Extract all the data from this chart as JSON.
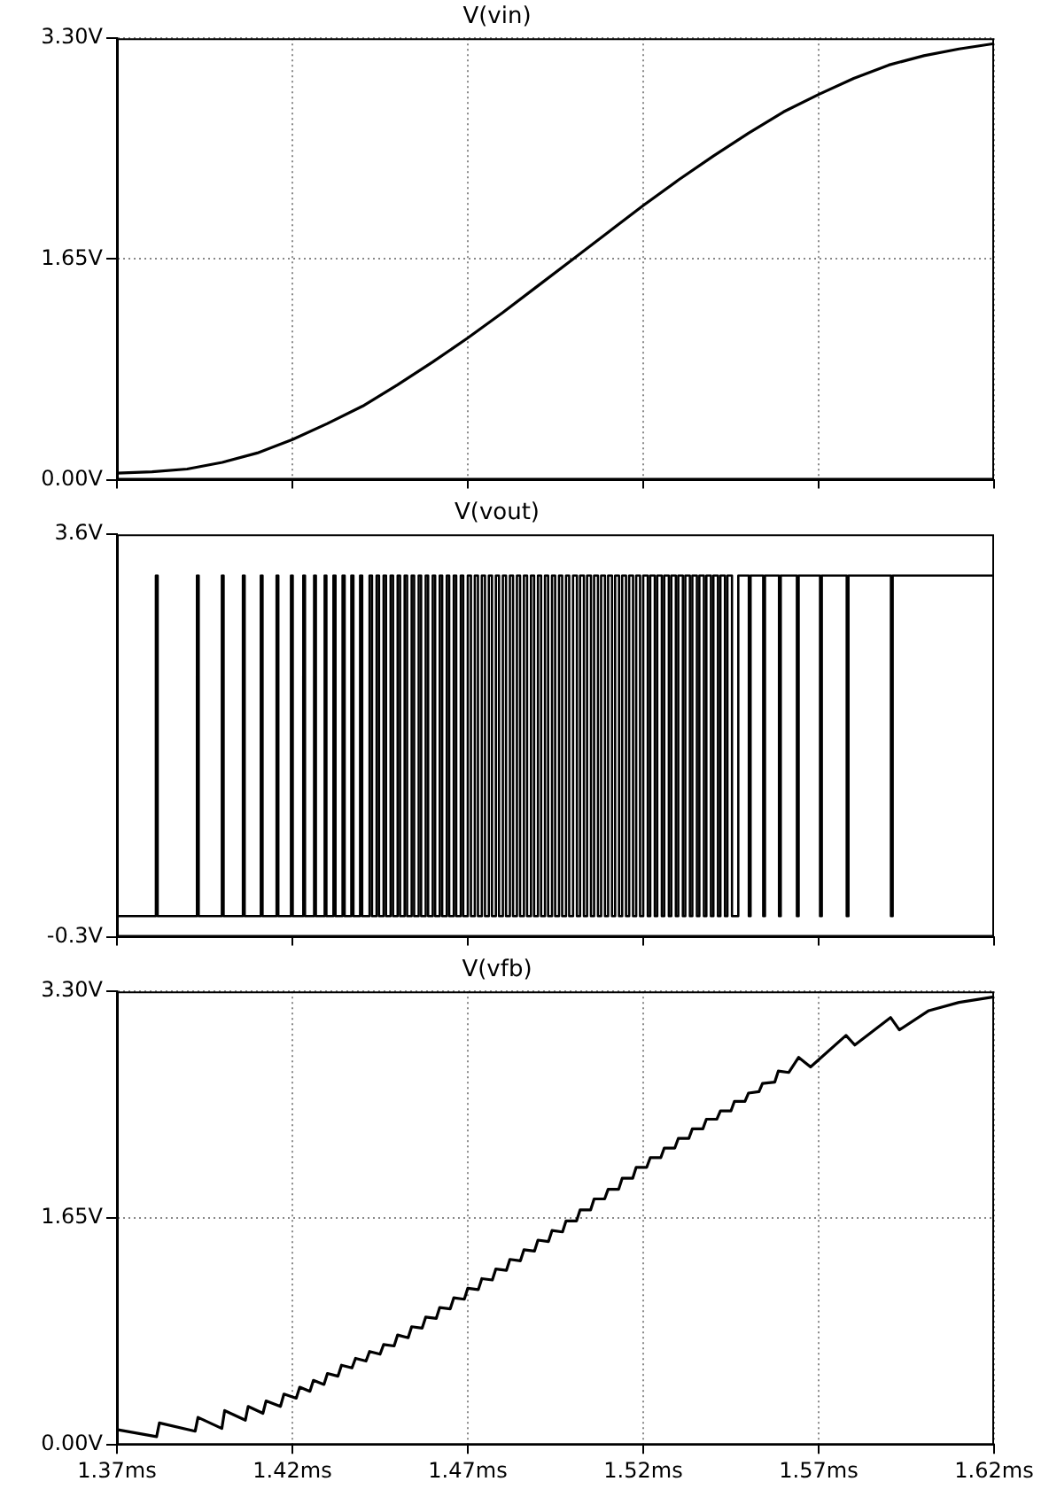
{
  "chart_data": [
    {
      "type": "line",
      "title": "V(vin)",
      "xlim": [
        1.37,
        1.62
      ],
      "ylim": [
        0,
        3.3
      ],
      "tick_labels": "y",
      "grid": true,
      "xticks": [
        {
          "value": 1.37,
          "label": null
        },
        {
          "value": 1.42,
          "label": null
        },
        {
          "value": 1.47,
          "label": null
        },
        {
          "value": 1.52,
          "label": null
        },
        {
          "value": 1.57,
          "label": null
        },
        {
          "value": 1.62,
          "label": null
        }
      ],
      "yticks": [
        {
          "value": 0,
          "label": "0.00V"
        },
        {
          "value": 1.65,
          "label": "1.65V"
        },
        {
          "value": 3.3,
          "label": "3.30V"
        }
      ],
      "series": [
        {
          "color": "#000000",
          "x": [
            1.37,
            1.38,
            1.39,
            1.4,
            1.41,
            1.42,
            1.43,
            1.44,
            1.45,
            1.46,
            1.47,
            1.48,
            1.49,
            1.5,
            1.51,
            1.52,
            1.53,
            1.54,
            1.55,
            1.56,
            1.57,
            1.58,
            1.59,
            1.6,
            1.61,
            1.62
          ],
          "values": [
            0.05,
            0.06,
            0.08,
            0.13,
            0.2,
            0.3,
            0.42,
            0.55,
            0.71,
            0.88,
            1.06,
            1.25,
            1.45,
            1.65,
            1.85,
            2.05,
            2.24,
            2.42,
            2.59,
            2.75,
            2.88,
            3.0,
            3.1,
            3.17,
            3.22,
            3.26
          ]
        }
      ]
    },
    {
      "type": "step",
      "title": "V(vout)",
      "xlim": [
        1.37,
        1.62
      ],
      "ylim": [
        -0.3,
        3.6
      ],
      "tick_labels": "y",
      "grid": false,
      "xticks": [
        {
          "value": 1.37,
          "label": null
        },
        {
          "value": 1.42,
          "label": null
        },
        {
          "value": 1.47,
          "label": null
        },
        {
          "value": 1.52,
          "label": null
        },
        {
          "value": 1.57,
          "label": null
        },
        {
          "value": 1.62,
          "label": null
        }
      ],
      "yticks": [
        {
          "value": -0.3,
          "label": "-0.3V"
        },
        {
          "value": 3.6,
          "label": "3.6V"
        }
      ],
      "series": [
        {
          "color": "#000000",
          "x": [
            1.37,
            1.3811,
            1.3816,
            1.3928,
            1.3933,
            1.3999,
            1.4004,
            1.4059,
            1.4064,
            1.411,
            1.4115,
            1.4155,
            1.416,
            1.4196,
            1.4201,
            1.4231,
            1.4236,
            1.4262,
            1.4267,
            1.4292,
            1.4297,
            1.4317,
            1.4323,
            1.4343,
            1.4349,
            1.4368,
            1.4374,
            1.4393,
            1.4399,
            1.442,
            1.4427,
            1.444,
            1.4447,
            1.446,
            1.4467,
            1.448,
            1.4487,
            1.45,
            1.4507,
            1.452,
            1.4527,
            1.454,
            1.4547,
            1.456,
            1.4567,
            1.458,
            1.4587,
            1.46,
            1.4607,
            1.462,
            1.4627,
            1.464,
            1.4647,
            1.466,
            1.4667,
            1.468,
            1.4687,
            1.47,
            1.4709,
            1.472,
            1.4729,
            1.474,
            1.4749,
            1.476,
            1.4769,
            1.478,
            1.4789,
            1.48,
            1.4809,
            1.482,
            1.4829,
            1.484,
            1.4849,
            1.486,
            1.4869,
            1.488,
            1.4889,
            1.49,
            1.4909,
            1.492,
            1.4929,
            1.494,
            1.4949,
            1.496,
            1.4969,
            1.498,
            1.4989,
            1.5,
            1.5011,
            1.502,
            1.5031,
            1.504,
            1.5051,
            1.506,
            1.5071,
            1.508,
            1.5091,
            1.51,
            1.5111,
            1.512,
            1.5131,
            1.514,
            1.5151,
            1.516,
            1.5171,
            1.518,
            1.5191,
            1.52,
            1.5213,
            1.522,
            1.5233,
            1.524,
            1.5253,
            1.526,
            1.5273,
            1.528,
            1.5293,
            1.53,
            1.5313,
            1.532,
            1.5333,
            1.534,
            1.5353,
            1.536,
            1.5373,
            1.538,
            1.5393,
            1.54,
            1.5413,
            1.542,
            1.5433,
            1.544,
            1.5453,
            1.5471,
            1.5501,
            1.5506,
            1.5542,
            1.5547,
            1.5587,
            1.5592,
            1.5638,
            1.5643,
            1.5704,
            1.5709,
            1.578,
            1.5785,
            1.5906,
            1.5911,
            1.62
          ],
          "values": [
            -0.1,
            3.2,
            -0.1,
            3.2,
            -0.1,
            3.2,
            -0.1,
            3.2,
            -0.1,
            3.2,
            -0.1,
            3.2,
            -0.1,
            3.2,
            -0.1,
            3.2,
            -0.1,
            3.2,
            -0.1,
            3.2,
            -0.1,
            3.2,
            -0.1,
            3.2,
            -0.1,
            3.2,
            -0.1,
            3.2,
            -0.1,
            3.2,
            -0.1,
            3.2,
            -0.1,
            3.2,
            -0.1,
            3.2,
            -0.1,
            3.2,
            -0.1,
            3.2,
            -0.1,
            3.2,
            -0.1,
            3.2,
            -0.1,
            3.2,
            -0.1,
            3.2,
            -0.1,
            3.2,
            -0.1,
            3.2,
            -0.1,
            3.2,
            -0.1,
            3.2,
            -0.1,
            3.2,
            -0.1,
            3.2,
            -0.1,
            3.2,
            -0.1,
            3.2,
            -0.1,
            3.2,
            -0.1,
            3.2,
            -0.1,
            3.2,
            -0.1,
            3.2,
            -0.1,
            3.2,
            -0.1,
            3.2,
            -0.1,
            3.2,
            -0.1,
            3.2,
            -0.1,
            3.2,
            -0.1,
            3.2,
            -0.1,
            3.2,
            -0.1,
            3.2,
            -0.1,
            3.2,
            -0.1,
            3.2,
            -0.1,
            3.2,
            -0.1,
            3.2,
            -0.1,
            3.2,
            -0.1,
            3.2,
            -0.1,
            3.2,
            -0.1,
            3.2,
            -0.1,
            3.2,
            -0.1,
            3.2,
            -0.1,
            3.2,
            -0.1,
            3.2,
            -0.1,
            3.2,
            -0.1,
            3.2,
            -0.1,
            3.2,
            -0.1,
            3.2,
            -0.1,
            3.2,
            -0.1,
            3.2,
            -0.1,
            3.2,
            -0.1,
            3.2,
            -0.1,
            3.2,
            -0.1,
            3.2,
            -0.1,
            3.2,
            -0.1,
            3.2,
            -0.1,
            3.2,
            -0.1,
            3.2,
            -0.1,
            3.2,
            -0.1,
            3.2,
            -0.1,
            3.2,
            -0.1,
            3.2,
            3.2
          ]
        }
      ]
    },
    {
      "type": "line",
      "title": "V(vfb)",
      "xlim": [
        1.37,
        1.62
      ],
      "ylim": [
        0,
        3.3
      ],
      "grid": true,
      "xticks": [
        {
          "value": 1.37,
          "label": "1.37ms"
        },
        {
          "value": 1.42,
          "label": "1.42ms"
        },
        {
          "value": 1.47,
          "label": "1.47ms"
        },
        {
          "value": 1.52,
          "label": "1.52ms"
        },
        {
          "value": 1.57,
          "label": "1.57ms"
        },
        {
          "value": 1.62,
          "label": "1.62ms"
        }
      ],
      "yticks": [
        {
          "value": 0,
          "label": "0.00V"
        },
        {
          "value": 1.65,
          "label": "1.65V"
        },
        {
          "value": 3.3,
          "label": "3.30V"
        }
      ],
      "series": [
        {
          "color": "#000000",
          "x": [
            1.3703,
            1.3813,
            1.3821,
            1.3923,
            1.3931,
            1.3999,
            1.4007,
            1.4066,
            1.4074,
            1.4116,
            1.4125,
            1.4166,
            1.4176,
            1.4211,
            1.4221,
            1.425,
            1.426,
            1.429,
            1.43,
            1.433,
            1.434,
            1.437,
            1.438,
            1.441,
            1.442,
            1.445,
            1.446,
            1.449,
            1.45,
            1.453,
            1.454,
            1.457,
            1.458,
            1.461,
            1.462,
            1.465,
            1.466,
            1.469,
            1.47,
            1.473,
            1.474,
            1.477,
            1.478,
            1.481,
            1.482,
            1.485,
            1.486,
            1.489,
            1.49,
            1.493,
            1.494,
            1.497,
            1.498,
            1.501,
            1.502,
            1.505,
            1.506,
            1.509,
            1.51,
            1.513,
            1.514,
            1.517,
            1.518,
            1.521,
            1.522,
            1.525,
            1.526,
            1.529,
            1.53,
            1.533,
            1.534,
            1.537,
            1.538,
            1.541,
            1.542,
            1.545,
            1.546,
            1.549,
            1.55,
            1.553,
            1.554,
            1.5575,
            1.5585,
            1.5615,
            1.5643,
            1.5677,
            1.5778,
            1.5803,
            1.5905,
            1.593,
            1.6014,
            1.61,
            1.62
          ],
          "values": [
            0.11,
            0.06,
            0.16,
            0.1,
            0.2,
            0.12,
            0.25,
            0.18,
            0.28,
            0.23,
            0.32,
            0.28,
            0.37,
            0.34,
            0.42,
            0.39,
            0.47,
            0.44,
            0.52,
            0.5,
            0.58,
            0.56,
            0.63,
            0.61,
            0.68,
            0.66,
            0.73,
            0.72,
            0.8,
            0.78,
            0.86,
            0.85,
            0.93,
            0.92,
            1.0,
            0.99,
            1.07,
            1.06,
            1.14,
            1.13,
            1.21,
            1.2,
            1.28,
            1.27,
            1.35,
            1.34,
            1.42,
            1.41,
            1.49,
            1.48,
            1.56,
            1.55,
            1.63,
            1.63,
            1.71,
            1.71,
            1.79,
            1.79,
            1.86,
            1.86,
            1.94,
            1.94,
            2.02,
            2.02,
            2.09,
            2.09,
            2.16,
            2.16,
            2.23,
            2.23,
            2.3,
            2.3,
            2.37,
            2.37,
            2.43,
            2.43,
            2.5,
            2.5,
            2.56,
            2.57,
            2.63,
            2.64,
            2.72,
            2.71,
            2.82,
            2.75,
            2.98,
            2.91,
            3.11,
            3.02,
            3.16,
            3.22,
            3.26
          ]
        }
      ]
    }
  ]
}
